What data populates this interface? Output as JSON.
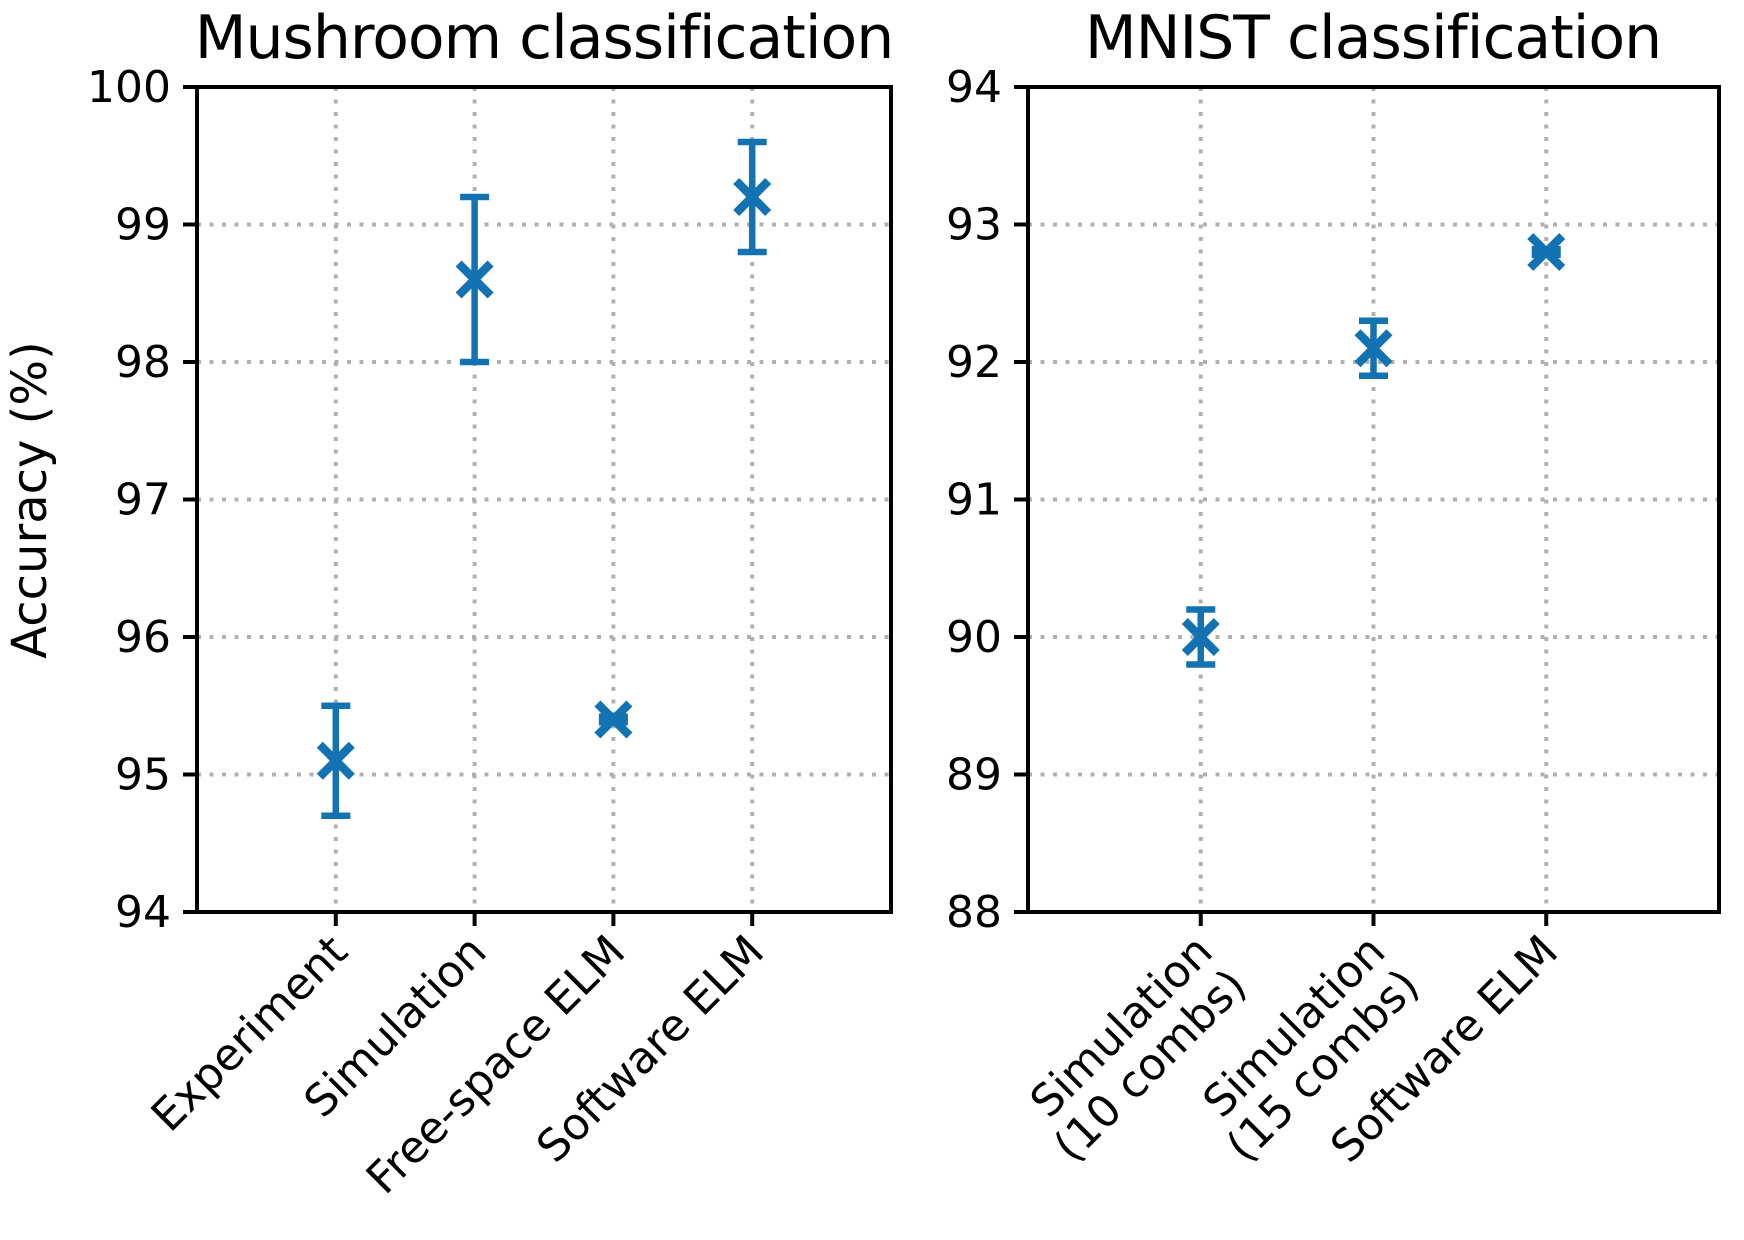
{
  "figure": {
    "background": "#ffffff",
    "accent_color": "#1372b1",
    "grid_color": "#b0b0b0",
    "axis_color": "#000000"
  },
  "chart_data": [
    {
      "type": "scatter",
      "title": "Mushroom classification",
      "ylabel": "Accuracy (%)",
      "ylim": [
        94,
        100
      ],
      "yticks": [
        94,
        95,
        96,
        97,
        98,
        99,
        100
      ],
      "ytick_labels": [
        "94",
        "95",
        "96",
        "97",
        "98",
        "99",
        "100"
      ],
      "grid": "dotted",
      "legend_position": "none",
      "marker": "x",
      "categories": [
        "Experiment",
        "Simulation",
        "Free-space ELM",
        "Software ELM"
      ],
      "values": [
        95.1,
        98.6,
        95.4,
        99.2
      ],
      "errors": [
        0.4,
        0.6,
        0.02,
        0.4
      ]
    },
    {
      "type": "scatter",
      "title": "MNIST classification",
      "ylabel": "",
      "ylim": [
        88,
        94
      ],
      "yticks": [
        88,
        89,
        90,
        91,
        92,
        93,
        94
      ],
      "ytick_labels": [
        "88",
        "89",
        "90",
        "91",
        "92",
        "93",
        "94"
      ],
      "grid": "dotted",
      "legend_position": "none",
      "marker": "x",
      "categories": [
        "Simulation\n(10 combs)",
        "Simulation\n(15 combs)",
        "Software ELM"
      ],
      "values": [
        90.0,
        92.1,
        92.8
      ],
      "errors": [
        0.2,
        0.2,
        0.02
      ]
    }
  ]
}
